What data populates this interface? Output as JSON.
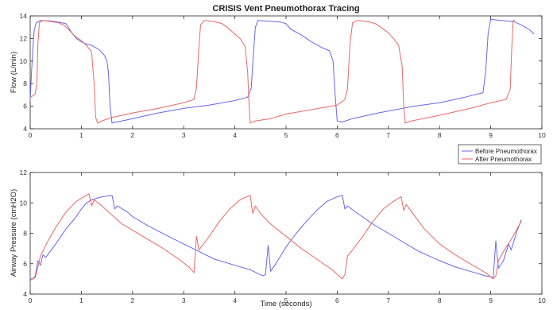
{
  "figure_title": "CRISIS Vent Pneumothorax Tracing",
  "chart_data": [
    {
      "type": "line",
      "title": "CRISIS Vent Pneumothorax Tracing",
      "xlabel": "",
      "ylabel": "Flow (L/min)",
      "xlim": [
        0,
        10
      ],
      "ylim": [
        4,
        14
      ],
      "xticks": [
        0,
        1,
        2,
        3,
        4,
        5,
        6,
        7,
        8,
        9,
        10
      ],
      "yticks": [
        4,
        6,
        8,
        10,
        12,
        14
      ],
      "grid": false,
      "legend": {
        "placement": "bottom-right",
        "entries": [
          "Before Pneumothorax",
          "After Pneumothorax"
        ]
      },
      "series": [
        {
          "name": "Before Pneumothorax",
          "color": "#6666ee",
          "points": [
            [
              0,
              6.5
            ],
            [
              0.02,
              8.5
            ],
            [
              0.05,
              11.0
            ],
            [
              0.08,
              12.8
            ],
            [
              0.12,
              13.4
            ],
            [
              0.2,
              13.6
            ],
            [
              0.4,
              13.55
            ],
            [
              0.55,
              13.45
            ],
            [
              0.7,
              13.3
            ],
            [
              0.8,
              12.6
            ],
            [
              0.9,
              12.0
            ],
            [
              1.0,
              11.7
            ],
            [
              1.1,
              11.5
            ],
            [
              1.2,
              11.4
            ],
            [
              1.35,
              11.0
            ],
            [
              1.45,
              10.5
            ],
            [
              1.5,
              10.0
            ],
            [
              1.53,
              9.0
            ],
            [
              1.56,
              6.0
            ],
            [
              1.6,
              4.5
            ],
            [
              1.65,
              4.6
            ],
            [
              1.7,
              4.6
            ],
            [
              2.0,
              4.9
            ],
            [
              2.5,
              5.4
            ],
            [
              3.0,
              5.8
            ],
            [
              3.5,
              6.1
            ],
            [
              4.0,
              6.5
            ],
            [
              4.25,
              6.8
            ],
            [
              4.32,
              7.6
            ],
            [
              4.36,
              10.5
            ],
            [
              4.4,
              13.0
            ],
            [
              4.45,
              13.6
            ],
            [
              4.6,
              13.55
            ],
            [
              4.9,
              13.45
            ],
            [
              5.0,
              13.3
            ],
            [
              5.1,
              12.8
            ],
            [
              5.3,
              12.3
            ],
            [
              5.5,
              11.7
            ],
            [
              5.7,
              11.2
            ],
            [
              5.85,
              10.9
            ],
            [
              5.92,
              10.0
            ],
            [
              5.96,
              7.0
            ],
            [
              6.0,
              4.7
            ],
            [
              6.1,
              4.6
            ],
            [
              6.3,
              4.9
            ],
            [
              6.8,
              5.4
            ],
            [
              7.5,
              6.0
            ],
            [
              8.0,
              6.3
            ],
            [
              8.5,
              6.8
            ],
            [
              8.85,
              7.2
            ],
            [
              8.9,
              9.0
            ],
            [
              8.95,
              12.5
            ],
            [
              9.0,
              13.7
            ],
            [
              9.2,
              13.6
            ],
            [
              9.45,
              13.5
            ],
            [
              9.6,
              13.2
            ],
            [
              9.75,
              12.8
            ],
            [
              9.85,
              12.4
            ]
          ]
        },
        {
          "name": "After Pneumothorax",
          "color": "#ee6666",
          "points": [
            [
              0,
              6.8
            ],
            [
              0.05,
              6.9
            ],
            [
              0.1,
              7.1
            ],
            [
              0.13,
              8.0
            ],
            [
              0.15,
              11.5
            ],
            [
              0.18,
              13.4
            ],
            [
              0.25,
              13.6
            ],
            [
              0.4,
              13.5
            ],
            [
              0.55,
              13.4
            ],
            [
              0.65,
              13.2
            ],
            [
              0.75,
              12.8
            ],
            [
              0.85,
              12.3
            ],
            [
              1.0,
              11.8
            ],
            [
              1.1,
              11.4
            ],
            [
              1.2,
              10.8
            ],
            [
              1.25,
              8.0
            ],
            [
              1.28,
              5.0
            ],
            [
              1.32,
              4.5
            ],
            [
              1.4,
              4.7
            ],
            [
              1.6,
              5.0
            ],
            [
              2.0,
              5.4
            ],
            [
              2.5,
              5.8
            ],
            [
              3.0,
              6.3
            ],
            [
              3.2,
              6.6
            ],
            [
              3.25,
              7.6
            ],
            [
              3.3,
              11.5
            ],
            [
              3.33,
              13.2
            ],
            [
              3.4,
              13.6
            ],
            [
              3.6,
              13.5
            ],
            [
              3.75,
              13.3
            ],
            [
              3.85,
              13.0
            ],
            [
              4.0,
              12.4
            ],
            [
              4.1,
              12.0
            ],
            [
              4.2,
              11.3
            ],
            [
              4.25,
              9.0
            ],
            [
              4.28,
              6.0
            ],
            [
              4.3,
              4.5
            ],
            [
              4.4,
              4.7
            ],
            [
              4.7,
              4.9
            ],
            [
              5.0,
              5.3
            ],
            [
              5.5,
              5.7
            ],
            [
              6.0,
              6.1
            ],
            [
              6.15,
              6.6
            ],
            [
              6.2,
              7.5
            ],
            [
              6.25,
              11.5
            ],
            [
              6.3,
              13.4
            ],
            [
              6.4,
              13.6
            ],
            [
              6.6,
              13.5
            ],
            [
              6.75,
              13.3
            ],
            [
              6.85,
              13.0
            ],
            [
              7.0,
              12.5
            ],
            [
              7.1,
              12.0
            ],
            [
              7.2,
              11.4
            ],
            [
              7.27,
              9.5
            ],
            [
              7.3,
              6.0
            ],
            [
              7.33,
              4.5
            ],
            [
              7.45,
              4.7
            ],
            [
              7.8,
              5.0
            ],
            [
              8.2,
              5.4
            ],
            [
              8.6,
              5.8
            ],
            [
              9.0,
              6.3
            ],
            [
              9.3,
              6.6
            ],
            [
              9.38,
              7.5
            ],
            [
              9.41,
              11.0
            ],
            [
              9.44,
              13.6
            ],
            [
              9.47,
              13.6
            ]
          ]
        }
      ]
    },
    {
      "type": "line",
      "title": "",
      "xlabel": "Time (seconds)",
      "ylabel": "Airway Pressure (cmH2O)",
      "xlim": [
        0,
        10
      ],
      "ylim": [
        4,
        12
      ],
      "xticks": [
        0,
        1,
        2,
        3,
        4,
        5,
        6,
        7,
        8,
        9,
        10
      ],
      "yticks": [
        4,
        6,
        8,
        10,
        12
      ],
      "grid": false,
      "legend": {
        "placement": "top-right",
        "entries": [
          "Before Pneumothorax",
          "After Pneumothorax"
        ]
      },
      "series": [
        {
          "name": "Before Pneumothorax",
          "color": "#6666ee",
          "points": [
            [
              0,
              5.0
            ],
            [
              0.05,
              5.0
            ],
            [
              0.1,
              5.2
            ],
            [
              0.15,
              6.2
            ],
            [
              0.2,
              5.9
            ],
            [
              0.25,
              6.6
            ],
            [
              0.3,
              6.4
            ],
            [
              0.5,
              7.3
            ],
            [
              0.7,
              8.3
            ],
            [
              0.9,
              9.1
            ],
            [
              1.0,
              9.6
            ],
            [
              1.1,
              10.0
            ],
            [
              1.2,
              10.2
            ],
            [
              1.4,
              10.4
            ],
            [
              1.6,
              10.5
            ],
            [
              1.65,
              9.6
            ],
            [
              1.7,
              9.8
            ],
            [
              1.9,
              9.4
            ],
            [
              2.0,
              9.1
            ],
            [
              2.3,
              8.5
            ],
            [
              2.7,
              7.8
            ],
            [
              3.0,
              7.3
            ],
            [
              3.3,
              6.8
            ],
            [
              3.6,
              6.3
            ],
            [
              4.0,
              5.9
            ],
            [
              4.3,
              5.6
            ],
            [
              4.55,
              5.2
            ],
            [
              4.6,
              5.3
            ],
            [
              4.65,
              7.2
            ],
            [
              4.7,
              5.5
            ],
            [
              4.8,
              6.0
            ],
            [
              5.0,
              7.1
            ],
            [
              5.2,
              8.0
            ],
            [
              5.4,
              8.8
            ],
            [
              5.6,
              9.5
            ],
            [
              5.8,
              10.1
            ],
            [
              6.0,
              10.4
            ],
            [
              6.1,
              10.5
            ],
            [
              6.15,
              9.6
            ],
            [
              6.2,
              9.8
            ],
            [
              6.4,
              9.3
            ],
            [
              6.7,
              8.6
            ],
            [
              7.0,
              8.0
            ],
            [
              7.3,
              7.4
            ],
            [
              7.6,
              6.8
            ],
            [
              8.0,
              6.2
            ],
            [
              8.3,
              5.8
            ],
            [
              8.6,
              5.5
            ],
            [
              8.9,
              5.2
            ],
            [
              9.05,
              5.1
            ],
            [
              9.1,
              7.5
            ],
            [
              9.15,
              5.7
            ],
            [
              9.25,
              6.2
            ],
            [
              9.35,
              7.3
            ],
            [
              9.4,
              6.9
            ],
            [
              9.5,
              8.0
            ],
            [
              9.6,
              8.9
            ]
          ]
        },
        {
          "name": "After Pneumothorax",
          "color": "#ee6666",
          "points": [
            [
              0,
              4.9
            ],
            [
              0.05,
              5.0
            ],
            [
              0.1,
              5.1
            ],
            [
              0.15,
              5.8
            ],
            [
              0.2,
              6.5
            ],
            [
              0.3,
              7.2
            ],
            [
              0.5,
              8.4
            ],
            [
              0.7,
              9.4
            ],
            [
              0.9,
              10.1
            ],
            [
              1.1,
              10.5
            ],
            [
              1.15,
              10.6
            ],
            [
              1.2,
              9.8
            ],
            [
              1.25,
              10.2
            ],
            [
              1.4,
              9.8
            ],
            [
              1.6,
              9.2
            ],
            [
              1.8,
              8.6
            ],
            [
              2.0,
              8.2
            ],
            [
              2.3,
              7.6
            ],
            [
              2.6,
              7.0
            ],
            [
              2.9,
              6.3
            ],
            [
              3.1,
              5.8
            ],
            [
              3.2,
              5.4
            ],
            [
              3.25,
              7.8
            ],
            [
              3.3,
              6.9
            ],
            [
              3.5,
              7.8
            ],
            [
              3.7,
              8.8
            ],
            [
              3.9,
              9.6
            ],
            [
              4.1,
              10.2
            ],
            [
              4.3,
              10.5
            ],
            [
              4.35,
              9.3
            ],
            [
              4.4,
              9.8
            ],
            [
              4.5,
              9.3
            ],
            [
              4.7,
              8.6
            ],
            [
              5.0,
              7.8
            ],
            [
              5.3,
              7.0
            ],
            [
              5.6,
              6.3
            ],
            [
              5.9,
              5.6
            ],
            [
              6.1,
              5.0
            ],
            [
              6.15,
              5.3
            ],
            [
              6.2,
              6.5
            ],
            [
              6.3,
              6.9
            ],
            [
              6.5,
              7.8
            ],
            [
              6.7,
              8.8
            ],
            [
              6.9,
              9.6
            ],
            [
              7.1,
              10.1
            ],
            [
              7.25,
              10.4
            ],
            [
              7.3,
              9.5
            ],
            [
              7.35,
              9.9
            ],
            [
              7.5,
              9.2
            ],
            [
              7.7,
              8.3
            ],
            [
              8.0,
              7.3
            ],
            [
              8.3,
              6.6
            ],
            [
              8.6,
              6.0
            ],
            [
              8.9,
              5.4
            ],
            [
              9.05,
              5.0
            ],
            [
              9.1,
              5.2
            ],
            [
              9.15,
              6.2
            ],
            [
              9.25,
              6.8
            ],
            [
              9.4,
              7.6
            ],
            [
              9.6,
              8.8
            ]
          ]
        }
      ]
    }
  ]
}
